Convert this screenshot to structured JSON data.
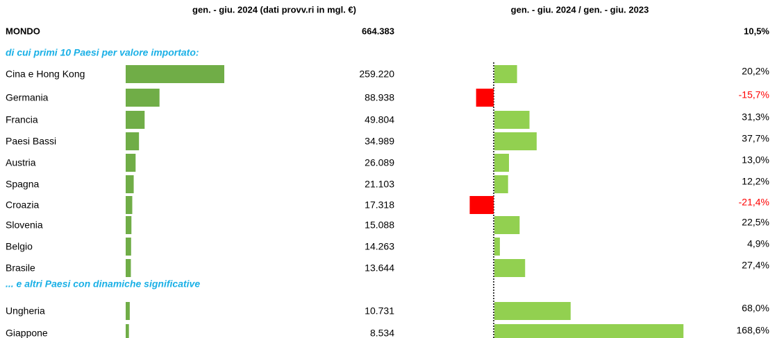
{
  "chart_data": {
    "type": "bar",
    "header": {
      "value_title": "gen. - giu. 2024 (dati provv.ri in mgl. €)",
      "change_title": "gen. - giu. 2024 / gen. - giu. 2023"
    },
    "world": {
      "name": "MONDO",
      "value": 664383,
      "value_label": "664.383",
      "change": 10.5,
      "change_label": "10,5%"
    },
    "sections": [
      {
        "title": "di cui primi 10 Paesi per valore importato:",
        "categories": [
          "Cina e Hong Kong",
          "Germania",
          "Francia",
          "Paesi Bassi",
          "Austria",
          "Spagna",
          "Croazia",
          "Slovenia",
          "Belgio",
          "Brasile"
        ],
        "values": [
          259220,
          88938,
          49804,
          34989,
          26089,
          21103,
          17318,
          15088,
          14263,
          13644
        ],
        "value_labels": [
          "259.220",
          "88.938",
          "49.804",
          "34.989",
          "26.089",
          "21.103",
          "17.318",
          "15.088",
          "14.263",
          "13.644"
        ],
        "changes": [
          20.2,
          -15.7,
          31.3,
          37.7,
          13.0,
          12.2,
          -21.4,
          22.5,
          4.9,
          27.4
        ],
        "change_labels": [
          "20,2%",
          "-15,7%",
          "31,3%",
          "37,7%",
          "13,0%",
          "12,2%",
          "-21,4%",
          "22,5%",
          "4,9%",
          "27,4%"
        ]
      },
      {
        "title": "... e altri Paesi con dinamiche significative",
        "categories": [
          "Ungheria",
          "Giappone"
        ],
        "values": [
          10731,
          8534
        ],
        "value_labels": [
          "10.731",
          "8.534"
        ],
        "changes": [
          68.0,
          168.6
        ],
        "change_labels": [
          "68,0%",
          "168,6%"
        ]
      }
    ],
    "colors": {
      "value_bar": "#70ad47",
      "positive": "#92d050",
      "negative": "#ff0000"
    }
  }
}
